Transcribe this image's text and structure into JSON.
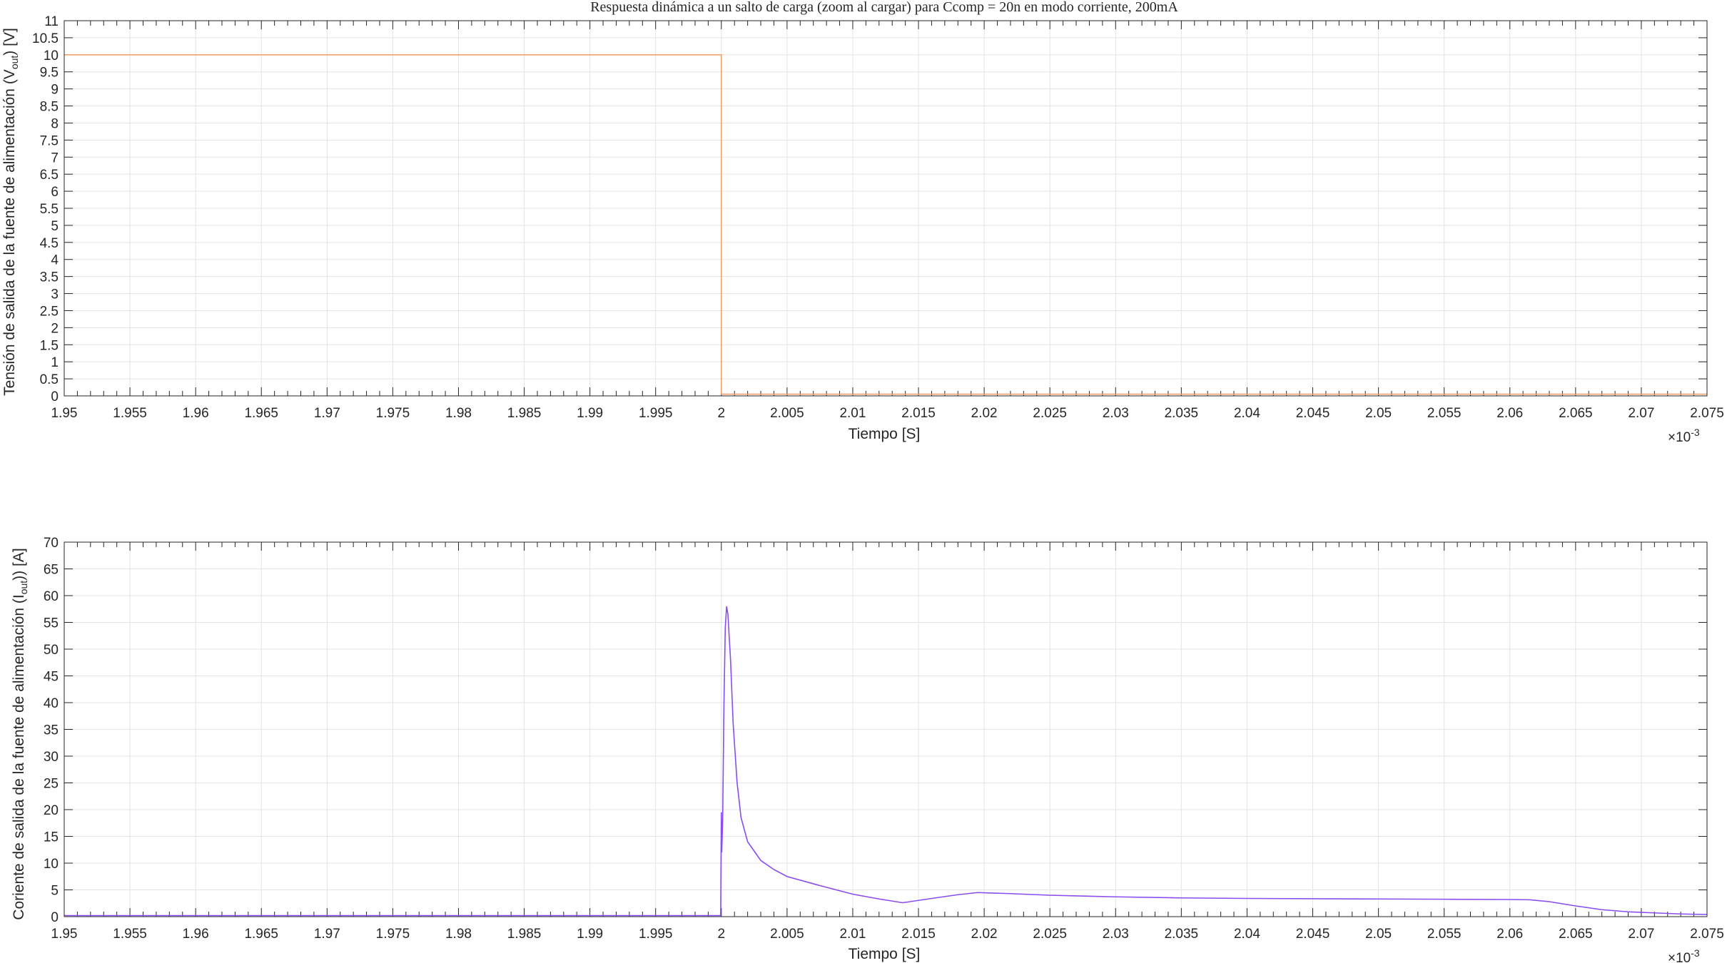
{
  "colors": {
    "grid": "#e3e3e3",
    "axis": "#262626",
    "voltage_series": "#f0a06a",
    "current_series": "#8a4cf0"
  },
  "chart_data": [
    {
      "type": "line",
      "title": "Respuesta dinámica a un salto de carga (zoom al cargar) para Ccomp = 20n en modo corriente, 200mA",
      "xlabel": "Tiempo [S]",
      "ylabel_main": "Tensión de salida de la fuente de alimentación (V",
      "ylabel_sub": "out",
      "ylabel_tail": ") [V]",
      "x_exponent_base": "×10",
      "x_exponent_power": "-3",
      "xlim": [
        1.95,
        2.075
      ],
      "ylim": [
        0,
        11
      ],
      "grid": true,
      "xticks": [
        "1.95",
        "1.955",
        "1.96",
        "1.965",
        "1.97",
        "1.975",
        "1.98",
        "1.985",
        "1.99",
        "1.995",
        "2",
        "2.005",
        "2.01",
        "2.015",
        "2.02",
        "2.025",
        "2.03",
        "2.035",
        "2.04",
        "2.045",
        "2.05",
        "2.055",
        "2.06",
        "2.065",
        "2.07",
        "2.075"
      ],
      "yticks": [
        "0",
        "0.5",
        "1",
        "1.5",
        "2",
        "2.5",
        "3",
        "3.5",
        "4",
        "4.5",
        "5",
        "5.5",
        "6",
        "6.5",
        "7",
        "7.5",
        "8",
        "8.5",
        "9",
        "9.5",
        "10",
        "10.5",
        "11"
      ],
      "series": [
        {
          "x": [
            1.95,
            2.0,
            2.0,
            2.075
          ],
          "y": [
            10.0,
            10.0,
            0.05,
            0.05
          ]
        }
      ]
    },
    {
      "type": "line",
      "xlabel": "Tiempo [S]",
      "ylabel_main": "Coriente de salida de la fuente de alimentación (I",
      "ylabel_sub": "out",
      "ylabel_tail": ")) [A]",
      "x_exponent_base": "×10",
      "x_exponent_power": "-3",
      "xlim": [
        1.95,
        2.075
      ],
      "ylim": [
        0,
        70
      ],
      "grid": true,
      "xticks": [
        "1.95",
        "1.955",
        "1.96",
        "1.965",
        "1.97",
        "1.975",
        "1.98",
        "1.985",
        "1.99",
        "1.995",
        "2",
        "2.005",
        "2.01",
        "2.015",
        "2.02",
        "2.025",
        "2.03",
        "2.035",
        "2.04",
        "2.045",
        "2.05",
        "2.055",
        "2.06",
        "2.065",
        "2.07",
        "2.075"
      ],
      "yticks": [
        "0",
        "5",
        "10",
        "15",
        "20",
        "25",
        "30",
        "35",
        "40",
        "45",
        "50",
        "55",
        "60",
        "65",
        "70"
      ],
      "series": [
        {
          "x": [
            1.95,
            1.99995,
            2.0,
            2.00003,
            2.0001,
            2.0002,
            2.0003,
            2.0004,
            2.0005,
            2.0007,
            2.0009,
            2.0012,
            2.0015,
            2.002,
            2.003,
            2.004,
            2.005,
            2.0075,
            2.01,
            2.012,
            2.0138,
            2.016,
            2.018,
            2.0195,
            2.022,
            2.025,
            2.03,
            2.035,
            2.04,
            2.05,
            2.055,
            2.06,
            2.0615,
            2.063,
            2.065,
            2.067,
            2.069,
            2.071,
            2.073,
            2.075
          ],
          "y": [
            0.2,
            0.2,
            19.5,
            12.0,
            18.0,
            40.0,
            54.0,
            58.0,
            56.5,
            48.0,
            36.0,
            25.0,
            18.5,
            14.0,
            10.5,
            8.8,
            7.5,
            5.8,
            4.2,
            3.3,
            2.6,
            3.4,
            4.1,
            4.5,
            4.3,
            4.0,
            3.7,
            3.5,
            3.4,
            3.3,
            3.25,
            3.2,
            3.15,
            2.8,
            2.0,
            1.3,
            0.9,
            0.7,
            0.5,
            0.4
          ]
        }
      ]
    }
  ]
}
